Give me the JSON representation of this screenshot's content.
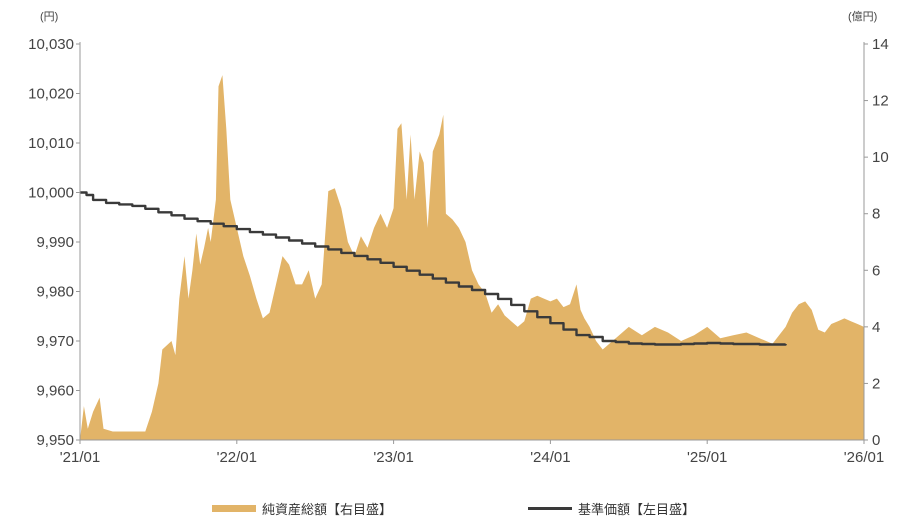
{
  "chart_data": {
    "type": "area+line",
    "left_axis_unit": "(円)",
    "right_axis_unit": "(億円)",
    "left_ticks": [
      "10,030",
      "10,020",
      "10,010",
      "10,000",
      "9,990",
      "9,980",
      "9,970",
      "9,960",
      "9,950"
    ],
    "right_ticks": [
      "14",
      "12",
      "10",
      "8",
      "6",
      "4",
      "2",
      "0"
    ],
    "x_ticks": [
      "'21/01",
      "'22/01",
      "'23/01",
      "'24/01",
      "'25/01",
      "'26/01"
    ],
    "left_ylim": [
      9950,
      10030
    ],
    "right_ylim": [
      0,
      14
    ],
    "x_range_months": [
      0,
      60
    ],
    "series": [
      {
        "name": "純資産総額【右目盛】",
        "axis": "right",
        "type": "area",
        "color": "#e2b468",
        "points": [
          [
            0.0,
            0.0
          ],
          [
            0.3,
            1.2
          ],
          [
            0.6,
            0.4
          ],
          [
            1.0,
            1.0
          ],
          [
            1.5,
            1.5
          ],
          [
            1.8,
            0.4
          ],
          [
            2.5,
            0.3
          ],
          [
            4.0,
            0.3
          ],
          [
            5.0,
            0.3
          ],
          [
            5.5,
            1.0
          ],
          [
            6.0,
            2.0
          ],
          [
            6.3,
            3.2
          ],
          [
            7.0,
            3.5
          ],
          [
            7.3,
            3.0
          ],
          [
            7.6,
            5.0
          ],
          [
            8.0,
            6.5
          ],
          [
            8.3,
            5.0
          ],
          [
            8.6,
            6.0
          ],
          [
            8.9,
            7.3
          ],
          [
            9.2,
            6.2
          ],
          [
            9.5,
            6.8
          ],
          [
            9.8,
            7.5
          ],
          [
            10.0,
            7.0
          ],
          [
            10.4,
            8.5
          ],
          [
            10.6,
            12.5
          ],
          [
            10.9,
            12.9
          ],
          [
            11.2,
            11.0
          ],
          [
            11.5,
            8.5
          ],
          [
            12.0,
            7.5
          ],
          [
            12.5,
            6.5
          ],
          [
            13.0,
            5.8
          ],
          [
            13.5,
            5.0
          ],
          [
            14.0,
            4.3
          ],
          [
            14.5,
            4.5
          ],
          [
            15.0,
            5.5
          ],
          [
            15.5,
            6.5
          ],
          [
            16.0,
            6.2
          ],
          [
            16.5,
            5.5
          ],
          [
            17.0,
            5.5
          ],
          [
            17.5,
            6.0
          ],
          [
            18.0,
            5.0
          ],
          [
            18.5,
            5.5
          ],
          [
            19.0,
            8.8
          ],
          [
            19.5,
            8.9
          ],
          [
            20.0,
            8.2
          ],
          [
            20.5,
            7.0
          ],
          [
            21.0,
            6.5
          ],
          [
            21.5,
            7.2
          ],
          [
            22.0,
            6.8
          ],
          [
            22.5,
            7.5
          ],
          [
            23.0,
            8.0
          ],
          [
            23.5,
            7.5
          ],
          [
            24.0,
            8.2
          ],
          [
            24.3,
            11.0
          ],
          [
            24.6,
            11.2
          ],
          [
            25.0,
            8.5
          ],
          [
            25.3,
            10.8
          ],
          [
            25.6,
            8.5
          ],
          [
            26.0,
            10.2
          ],
          [
            26.3,
            9.8
          ],
          [
            26.6,
            7.5
          ],
          [
            27.0,
            10.2
          ],
          [
            27.5,
            10.8
          ],
          [
            27.8,
            11.5
          ],
          [
            28.0,
            8.0
          ],
          [
            28.5,
            7.8
          ],
          [
            29.0,
            7.5
          ],
          [
            29.5,
            7.0
          ],
          [
            30.0,
            6.0
          ],
          [
            30.5,
            5.5
          ],
          [
            31.0,
            5.2
          ],
          [
            31.5,
            4.5
          ],
          [
            32.0,
            4.8
          ],
          [
            32.5,
            4.4
          ],
          [
            33.0,
            4.2
          ],
          [
            33.5,
            4.0
          ],
          [
            34.0,
            4.2
          ],
          [
            34.5,
            5.0
          ],
          [
            35.0,
            5.1
          ],
          [
            35.5,
            5.0
          ],
          [
            36.0,
            4.9
          ],
          [
            36.5,
            5.0
          ],
          [
            37.0,
            4.7
          ],
          [
            37.5,
            4.8
          ],
          [
            38.0,
            5.5
          ],
          [
            38.3,
            4.6
          ],
          [
            38.6,
            4.3
          ],
          [
            39.0,
            4.0
          ],
          [
            39.5,
            3.5
          ],
          [
            40.0,
            3.2
          ],
          [
            41.0,
            3.6
          ],
          [
            42.0,
            4.0
          ],
          [
            43.0,
            3.7
          ],
          [
            44.0,
            4.0
          ],
          [
            45.0,
            3.8
          ],
          [
            46.0,
            3.5
          ],
          [
            47.0,
            3.7
          ],
          [
            48.0,
            4.0
          ],
          [
            49.0,
            3.6
          ],
          [
            50.0,
            3.7
          ],
          [
            51.0,
            3.8
          ],
          [
            52.0,
            3.6
          ],
          [
            53.0,
            3.4
          ],
          [
            54.0,
            4.0
          ],
          [
            54.5,
            4.5
          ],
          [
            55.0,
            4.8
          ],
          [
            55.5,
            4.9
          ],
          [
            56.0,
            4.6
          ],
          [
            56.5,
            3.9
          ],
          [
            57.0,
            3.8
          ],
          [
            57.5,
            4.1
          ],
          [
            58.0,
            4.2
          ],
          [
            58.5,
            4.3
          ],
          [
            59.0,
            4.2
          ],
          [
            59.5,
            4.1
          ],
          [
            60.0,
            4.0
          ]
        ]
      },
      {
        "name": "基準価額【左目盛】",
        "axis": "left",
        "type": "line",
        "color": "#3a3a3a",
        "points": [
          [
            0.0,
            10000.0
          ],
          [
            0.5,
            9999.5
          ],
          [
            1.0,
            9998.5
          ],
          [
            2.0,
            9997.9
          ],
          [
            3.0,
            9997.6
          ],
          [
            4.0,
            9997.3
          ],
          [
            5.0,
            9996.7
          ],
          [
            6.0,
            9996.0
          ],
          [
            7.0,
            9995.4
          ],
          [
            8.0,
            9994.7
          ],
          [
            9.0,
            9994.2
          ],
          [
            10.0,
            9993.7
          ],
          [
            11.0,
            9993.2
          ],
          [
            12.0,
            9992.6
          ],
          [
            13.0,
            9992.0
          ],
          [
            14.0,
            9991.5
          ],
          [
            15.0,
            9990.9
          ],
          [
            16.0,
            9990.3
          ],
          [
            17.0,
            9989.7
          ],
          [
            18.0,
            9989.1
          ],
          [
            19.0,
            9988.5
          ],
          [
            20.0,
            9987.8
          ],
          [
            21.0,
            9987.2
          ],
          [
            22.0,
            9986.5
          ],
          [
            23.0,
            9985.8
          ],
          [
            24.0,
            9985.0
          ],
          [
            25.0,
            9984.2
          ],
          [
            26.0,
            9983.4
          ],
          [
            27.0,
            9982.6
          ],
          [
            28.0,
            9981.8
          ],
          [
            29.0,
            9981.0
          ],
          [
            30.0,
            9980.3
          ],
          [
            31.0,
            9979.5
          ],
          [
            32.0,
            9978.5
          ],
          [
            33.0,
            9977.3
          ],
          [
            34.0,
            9976.0
          ],
          [
            35.0,
            9974.8
          ],
          [
            36.0,
            9973.6
          ],
          [
            37.0,
            9972.3
          ],
          [
            38.0,
            9971.2
          ],
          [
            39.0,
            9970.8
          ],
          [
            40.0,
            9970.0
          ],
          [
            41.0,
            9969.8
          ],
          [
            42.0,
            9969.5
          ],
          [
            43.0,
            9969.4
          ],
          [
            44.0,
            9969.3
          ],
          [
            45.0,
            9969.3
          ],
          [
            46.0,
            9969.4
          ],
          [
            47.0,
            9969.5
          ],
          [
            48.0,
            9969.6
          ],
          [
            49.0,
            9969.5
          ],
          [
            50.0,
            9969.4
          ],
          [
            51.0,
            9969.4
          ],
          [
            52.0,
            9969.3
          ],
          [
            53.0,
            9969.3
          ],
          [
            53.5,
            9969.3
          ],
          [
            54.0,
            9969.4
          ]
        ]
      }
    ]
  },
  "legend": {
    "bar_label": "純資産総額【右目盛】",
    "line_label": "基準価額【左目盛】"
  }
}
